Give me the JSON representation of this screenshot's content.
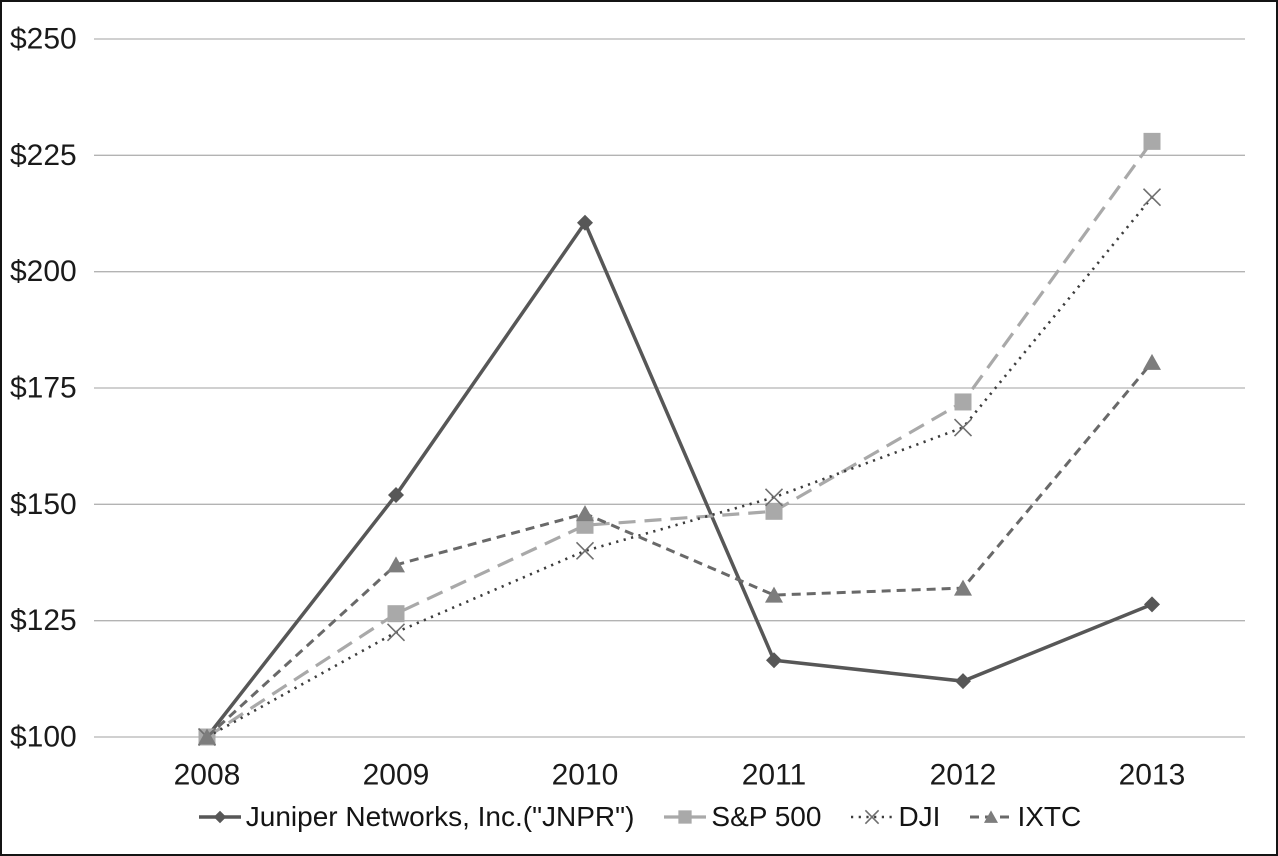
{
  "chart_data": {
    "type": "line",
    "x": [
      "2008",
      "2009",
      "2010",
      "2011",
      "2012",
      "2013"
    ],
    "series": [
      {
        "name": "Juniper Networks, Inc.(\"JNPR\")",
        "values": [
          100,
          152,
          210.5,
          116.5,
          112,
          128.5
        ],
        "line_style": "solid",
        "marker": "diamond",
        "line_color": "#575757",
        "marker_color": "#575757"
      },
      {
        "name": "S&P 500",
        "values": [
          100,
          126.5,
          145.5,
          148.5,
          172,
          228
        ],
        "line_style": "long-dash",
        "marker": "square",
        "line_color": "#a9a9a9",
        "marker_color": "#a9a9a9"
      },
      {
        "name": "DJI",
        "values": [
          100,
          122.5,
          140,
          151.5,
          166.5,
          216
        ],
        "line_style": "dotted",
        "marker": "x",
        "line_color": "#3d3d3d",
        "marker_color": "#6f6f6f"
      },
      {
        "name": "IXTC",
        "values": [
          100,
          137,
          148,
          130.5,
          132,
          180.5
        ],
        "line_style": "dash",
        "marker": "triangle",
        "line_color": "#696969",
        "marker_color": "#7d7d7d"
      }
    ],
    "title": "",
    "xlabel": "",
    "ylabel": "",
    "ylim": [
      100,
      250
    ],
    "ytick_step": 25,
    "ytick_prefix": "$",
    "grid": true,
    "legend_position": "bottom"
  },
  "colors": {
    "background": "#ffffff",
    "border": "#141414",
    "gridline": "#b3b3b3",
    "text": "#1a1a1a"
  }
}
